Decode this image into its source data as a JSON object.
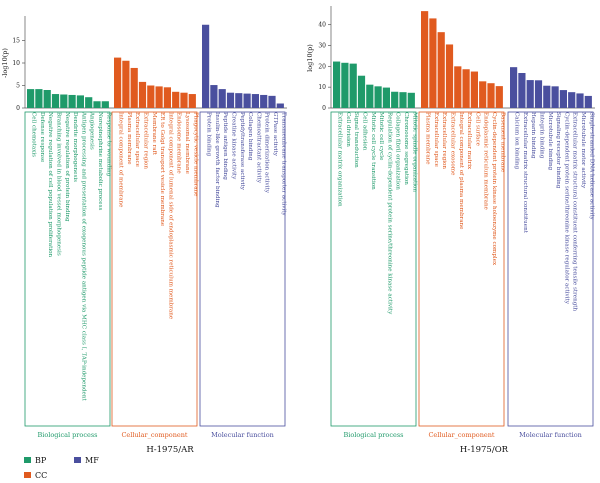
{
  "colors": {
    "BP": "#1f9a6a",
    "CC": "#e05a1f",
    "MF": "#4a4f9e"
  },
  "legend": [
    {
      "key": "BP",
      "label": "BP"
    },
    {
      "key": "CC",
      "label": "CC"
    },
    {
      "key": "MF",
      "label": "MF"
    }
  ],
  "groups": {
    "BP": "Biological process",
    "CC": "Cellular_component",
    "MF": "Molecular function"
  },
  "chart_data": [
    {
      "type": "bar",
      "title": "H-1975/AR",
      "ylabel": "-log10(p)",
      "ylim": [
        0,
        20
      ],
      "yticks": [
        0,
        5,
        10,
        15
      ],
      "series": [
        {
          "name": "BP",
          "categories": [
            "Cell chemotaxis",
            "Defense response",
            "Negative regulation of cell population proliferation",
            "Branching involved in blood vessel morphogenesis",
            "Negative regulation of protein binding",
            "Dendrite morphogenesis",
            "Antigen processing and presentation of exogenous peptide antigen via MHC class I, TAP-independent",
            "Angiogenesis",
            "Norepinephrine metabolic process",
            "Response to wounding"
          ],
          "values": [
            4.2,
            4.2,
            4.0,
            3.1,
            3.0,
            2.9,
            2.8,
            2.4,
            1.5,
            1.5
          ]
        },
        {
          "name": "CC",
          "categories": [
            "Integral component of membrane",
            "Plasma membrane",
            "Extracellular space",
            "Extracellular region",
            "Membrane raft",
            "ER to Golgi transport vesicle membrane",
            "Integral component of lumenal side of endoplasmic reticulum membrane",
            "Endosome membrane",
            "Lysosomal membrane",
            "Phagocytic vesicle membrane"
          ],
          "values": [
            11.2,
            10.5,
            8.9,
            5.8,
            5.0,
            4.8,
            4.6,
            3.6,
            3.4,
            3.1
          ]
        },
        {
          "name": "MF",
          "categories": [
            "Protein binding",
            "Insulin-like growth factor binding",
            "Peptide antigen binding",
            "Creatine kinase activity",
            "Peptidyltransferase activity",
            "Collagen binding",
            "Chemoattractant activity",
            "Protein dimerization activity",
            "GTPase activity",
            "Transmembrane transporter activity"
          ],
          "values": [
            18.5,
            5.1,
            4.2,
            3.4,
            3.3,
            3.2,
            3.1,
            2.9,
            2.7,
            1.0
          ]
        }
      ]
    },
    {
      "type": "bar",
      "title": "H-1975/OR",
      "ylabel": "log10(p)",
      "ylim": [
        0,
        48
      ],
      "yticks": [
        0,
        10,
        20,
        30,
        40
      ],
      "series": [
        {
          "name": "BP",
          "categories": [
            "Extracellular matrix organization",
            "Cell division",
            "Signal transduction",
            "Cell adhesion",
            "Mitotic cell cycle transition",
            "Mitotic cell cycle",
            "Regulation of cyclin-dependent protein serine/threonine kinase activity",
            "Collagen fibril organization",
            "Chromosome segregation",
            "Mitotic spindle organization"
          ],
          "values": [
            22.3,
            21.7,
            21.3,
            15.5,
            11.2,
            10.4,
            9.8,
            7.8,
            7.6,
            7.3
          ]
        },
        {
          "name": "CC",
          "categories": [
            "Plasma membrane",
            "Extracellular space",
            "Extracellular region",
            "Extracellular exosome",
            "Integral component of plasma membrane",
            "Extracellular matrix",
            "Cell surface",
            "Endoplasmic reticulum membrane",
            "Cyclin-dependent protein kinase holoenzyme complex",
            "Basement membrane"
          ],
          "values": [
            46.5,
            43.0,
            36.4,
            30.5,
            20.0,
            18.6,
            17.5,
            12.8,
            11.9,
            10.5
          ]
        },
        {
          "name": "MF",
          "categories": [
            "Calcium ion binding",
            "Extracellular matrix structural constituent",
            "Heparin binding",
            "Integrin binding",
            "Microtubule binding",
            "Signaling receptor binding",
            "Cyclin-dependent protein serine/threonine kinase regulator activity",
            "Extracellular matrix structural constituent conferring tensile strength",
            "Microtubule motor activity",
            "Single-stranded DNA helicase activity"
          ],
          "values": [
            19.6,
            16.8,
            13.4,
            13.3,
            10.7,
            10.4,
            8.6,
            7.6,
            7.0,
            5.8
          ]
        }
      ]
    }
  ]
}
